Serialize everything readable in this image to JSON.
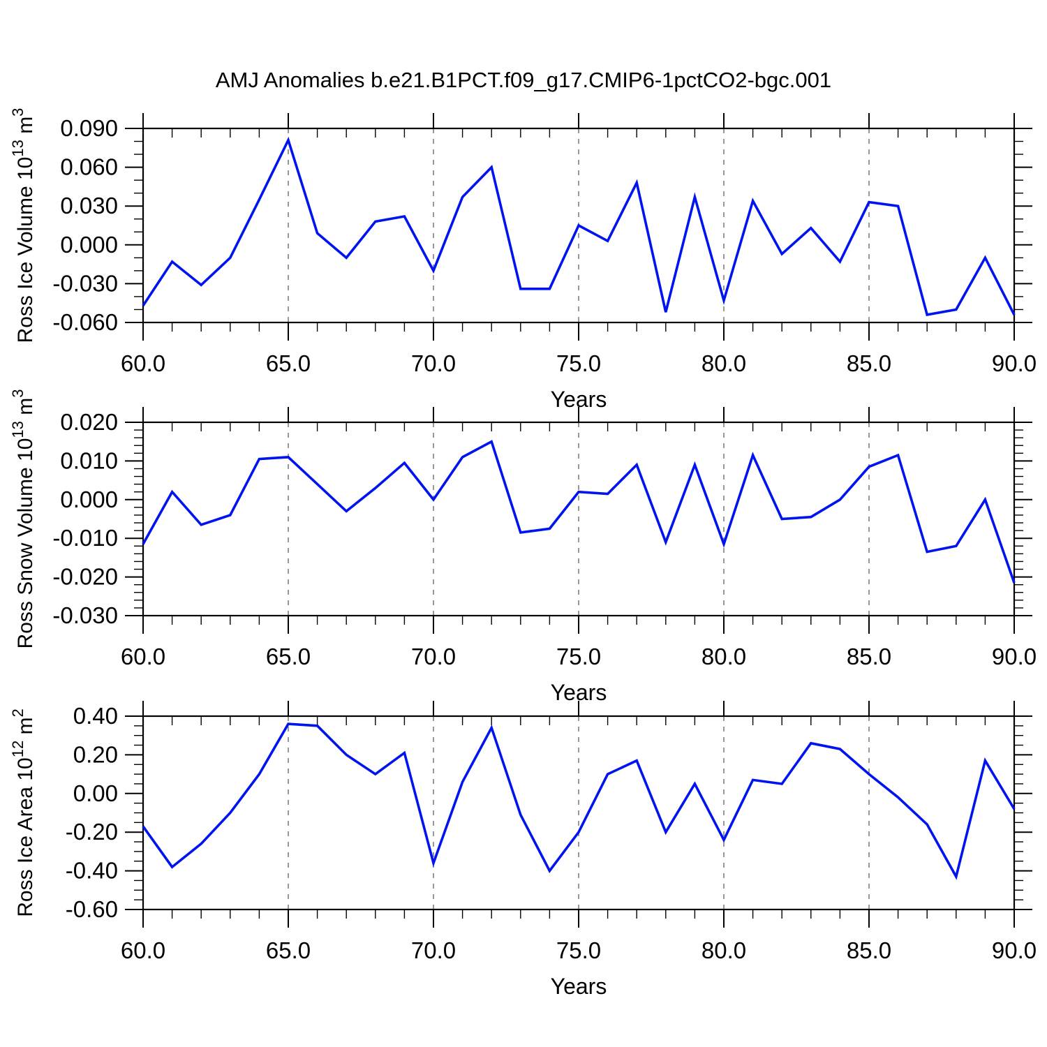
{
  "title": "AMJ Anomalies b.e21.B1PCT.f09_g17.CMIP6-1pctCO2-bgc.001",
  "x_axis": {
    "label": "Years",
    "min": 60,
    "max": 90,
    "major_ticks": [
      60,
      65,
      70,
      75,
      80,
      85,
      90
    ],
    "major_tick_labels": [
      "60.0",
      "65.0",
      "70.0",
      "75.0",
      "80.0",
      "85.0",
      "90.0"
    ],
    "minor_step": 1,
    "gridlines": [
      65,
      70,
      75,
      80,
      85
    ]
  },
  "style": {
    "line_color": "#0014f0",
    "frame_color": "#000000",
    "gridline_color": "#808080",
    "background": "#ffffff"
  },
  "chart_data": [
    {
      "type": "line",
      "ylabel_parts": [
        {
          "text": "Ross Ice Volume 10"
        },
        {
          "text": "13",
          "sup": true
        },
        {
          "text": " m"
        },
        {
          "text": "3",
          "sup": true
        }
      ],
      "ylim": [
        -0.06,
        0.09
      ],
      "y_major_ticks": [
        0.09,
        0.06,
        0.03,
        0.0,
        -0.03,
        -0.06
      ],
      "y_major_tick_labels": [
        "0.090",
        "0.060",
        "0.030",
        "0.000",
        "-0.030",
        "-0.060"
      ],
      "y_minor_step": 0.01,
      "x_start": 60,
      "values": [
        -0.047,
        -0.013,
        -0.031,
        -0.01,
        0.035,
        0.081,
        0.009,
        -0.01,
        0.018,
        0.022,
        -0.02,
        0.037,
        0.06,
        -0.034,
        -0.034,
        0.015,
        0.003,
        0.048,
        -0.052,
        0.037,
        -0.043,
        0.034,
        -0.007,
        0.013,
        -0.013,
        0.033,
        0.03,
        -0.054,
        -0.05,
        -0.01,
        -0.054
      ],
      "xlabel": "Years"
    },
    {
      "type": "line",
      "ylabel_parts": [
        {
          "text": "Ross Snow Volume 10"
        },
        {
          "text": "13",
          "sup": true
        },
        {
          "text": " m"
        },
        {
          "text": "3",
          "sup": true
        }
      ],
      "ylim": [
        -0.03,
        0.02
      ],
      "y_major_ticks": [
        0.02,
        0.01,
        0.0,
        -0.01,
        -0.02,
        -0.03
      ],
      "y_major_tick_labels": [
        "0.020",
        "0.010",
        "0.000",
        "-0.010",
        "-0.020",
        "-0.030"
      ],
      "y_minor_step": 0.002,
      "x_start": 60,
      "values": [
        -0.0115,
        0.002,
        -0.0065,
        -0.004,
        0.0105,
        0.011,
        0.004,
        -0.003,
        0.003,
        0.0095,
        0.0,
        0.011,
        0.015,
        -0.0085,
        -0.0075,
        0.002,
        0.0015,
        0.009,
        -0.011,
        0.009,
        -0.0115,
        0.0115,
        -0.005,
        -0.0045,
        0.0,
        0.0085,
        0.0115,
        -0.0135,
        -0.012,
        0.0,
        -0.0215
      ],
      "xlabel": "Years"
    },
    {
      "type": "line",
      "ylabel_parts": [
        {
          "text": "Ross Ice Area 10"
        },
        {
          "text": "12",
          "sup": true
        },
        {
          "text": " m"
        },
        {
          "text": "2",
          "sup": true
        }
      ],
      "ylim": [
        -0.6,
        0.4
      ],
      "y_major_ticks": [
        0.4,
        0.2,
        0.0,
        -0.2,
        -0.4,
        -0.6
      ],
      "y_major_tick_labels": [
        "0.40",
        "0.20",
        "0.00",
        "-0.20",
        "-0.40",
        "-0.60"
      ],
      "y_minor_step": 0.05,
      "x_start": 60,
      "values": [
        -0.17,
        -0.38,
        -0.26,
        -0.1,
        0.1,
        0.36,
        0.35,
        0.2,
        0.1,
        0.21,
        -0.36,
        0.06,
        0.34,
        -0.11,
        -0.4,
        -0.2,
        0.1,
        0.17,
        -0.2,
        0.05,
        -0.24,
        0.07,
        0.05,
        0.26,
        0.23,
        0.1,
        -0.02,
        -0.16,
        -0.43,
        0.17,
        -0.08
      ],
      "xlabel": "Years"
    }
  ]
}
